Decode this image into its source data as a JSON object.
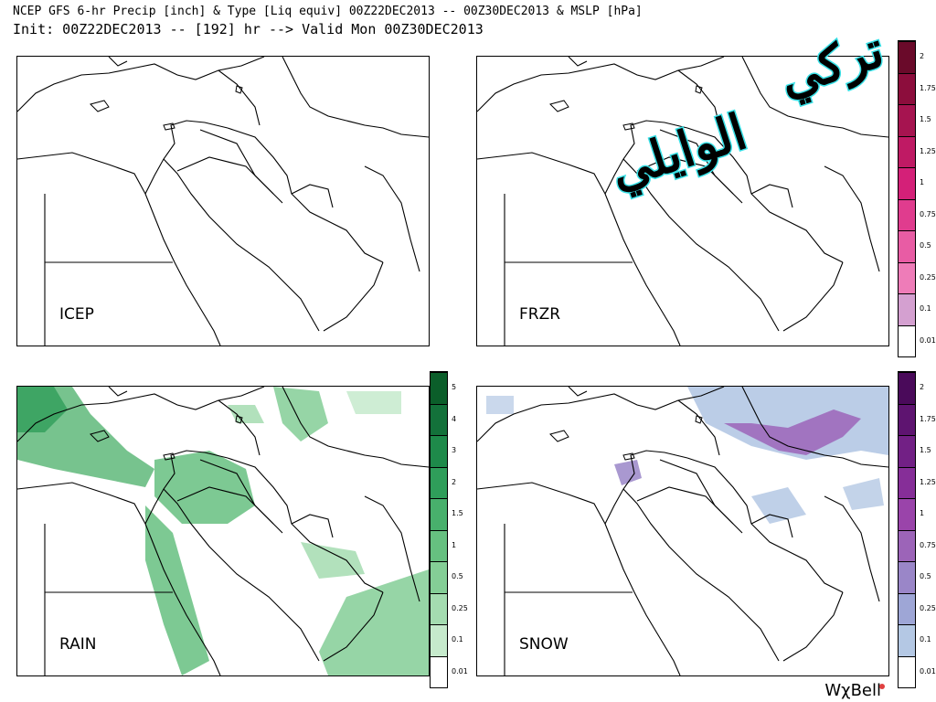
{
  "header": {
    "line1": "NCEP GFS 6-hr Precip [inch] & Type [Liq equiv] 00Z22DEC2013 -- 00Z30DEC2013 & MSLP [hPa]",
    "line2": "Init: 00Z22DEC2013 -- [192] hr --> Valid Mon 00Z30DEC2013"
  },
  "panels": {
    "icep": {
      "label": "ICEP"
    },
    "frzr": {
      "label": "FRZR"
    },
    "rain": {
      "label": "RAIN"
    },
    "snow": {
      "label": "SNOW"
    }
  },
  "colorbars": {
    "frzr_ticks": [
      "2",
      "1.75",
      "1.5",
      "1.25",
      "1",
      "0.75",
      "0.5",
      "0.25",
      "0.1",
      "0.01"
    ],
    "rain_ticks": [
      "5",
      "4",
      "3",
      "2",
      "1.5",
      "1",
      "0.5",
      "0.25",
      "0.1",
      "0.01"
    ],
    "snow_ticks": [
      "2",
      "1.75",
      "1.5",
      "1.25",
      "1",
      "0.75",
      "0.5",
      "0.25",
      "0.1",
      "0.01"
    ],
    "frzr_colors": [
      "#6a0a2a",
      "#8c0d3c",
      "#a61450",
      "#bf1a64",
      "#d42078",
      "#e03c8e",
      "#e85ca4",
      "#ee7cb8",
      "#d4a0d0",
      "#ffffff"
    ],
    "rain_colors": [
      "#0b5e2a",
      "#13713a",
      "#1e8a4a",
      "#2f9e5a",
      "#48b06c",
      "#66c080",
      "#84ce96",
      "#a4dcb0",
      "#c6eacc",
      "#ffffff"
    ],
    "snow_colors": [
      "#4a0a5a",
      "#5e1470",
      "#722085",
      "#862e98",
      "#9a44aa",
      "#9c64b8",
      "#9a86c8",
      "#9ea6d6",
      "#b4c8e4",
      "#ffffff"
    ]
  },
  "brand": "WχBell",
  "watermark": {
    "line1": "تركي",
    "line2": "الوايلي"
  }
}
